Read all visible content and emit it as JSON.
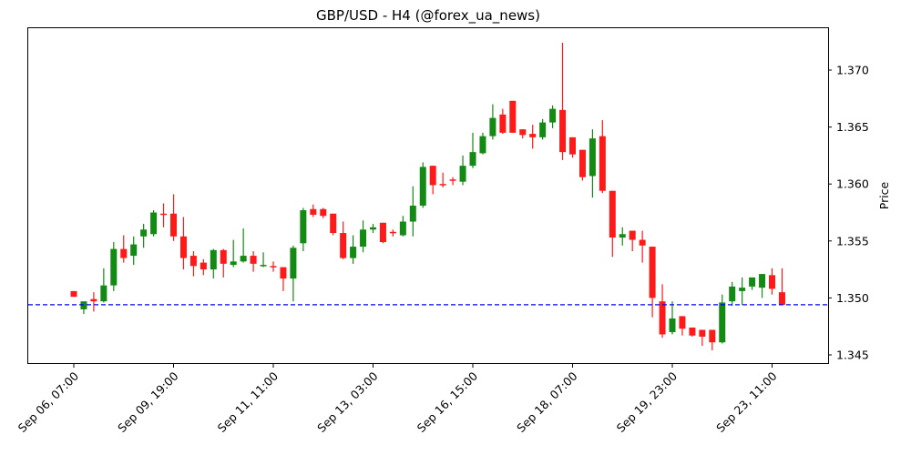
{
  "chart_data": {
    "type": "candlestick",
    "title": "GBP/USD - H4 (@forex_ua_news)",
    "xlabel": "",
    "ylabel": "Price",
    "ylim": [
      1.3441,
      1.3738
    ],
    "yticks": [
      "1.345",
      "1.350",
      "1.355",
      "1.360",
      "1.365",
      "1.370"
    ],
    "xticks": [
      {
        "label": "Sep 06, 07:00",
        "index": 0
      },
      {
        "label": "Sep 09, 19:00",
        "index": 10
      },
      {
        "label": "Sep 11, 11:00",
        "index": 20
      },
      {
        "label": "Sep 13, 03:00",
        "index": 30
      },
      {
        "label": "Sep 16, 15:00",
        "index": 40
      },
      {
        "label": "Sep 18, 07:00",
        "index": 50
      },
      {
        "label": "Sep 19, 23:00",
        "index": 60
      },
      {
        "label": "Sep 23, 11:00",
        "index": 70
      }
    ],
    "reference_line": {
      "value": 1.3494,
      "style": "dashed",
      "color": "#0000ff"
    },
    "up_color": "#138a13",
    "down_color": "#ff1a1a",
    "candles": [
      {
        "o": 1.3506,
        "h": 1.3506,
        "l": 1.3501,
        "c": 1.3501
      },
      {
        "o": 1.349,
        "h": 1.3496,
        "l": 1.3486,
        "c": 1.3497
      },
      {
        "o": 1.3499,
        "h": 1.3505,
        "l": 1.3488,
        "c": 1.3497
      },
      {
        "o": 1.3497,
        "h": 1.3526,
        "l": 1.3496,
        "c": 1.3511
      },
      {
        "o": 1.3511,
        "h": 1.3549,
        "l": 1.3506,
        "c": 1.3543
      },
      {
        "o": 1.3543,
        "h": 1.3555,
        "l": 1.3531,
        "c": 1.3535
      },
      {
        "o": 1.3537,
        "h": 1.3554,
        "l": 1.3529,
        "c": 1.3547
      },
      {
        "o": 1.3554,
        "h": 1.3565,
        "l": 1.3544,
        "c": 1.356
      },
      {
        "o": 1.3556,
        "h": 1.3577,
        "l": 1.3554,
        "c": 1.3575
      },
      {
        "o": 1.3574,
        "h": 1.3583,
        "l": 1.3562,
        "c": 1.3573
      },
      {
        "o": 1.3574,
        "h": 1.3591,
        "l": 1.355,
        "c": 1.3554
      },
      {
        "o": 1.3554,
        "h": 1.3571,
        "l": 1.3525,
        "c": 1.3535
      },
      {
        "o": 1.3537,
        "h": 1.3541,
        "l": 1.3519,
        "c": 1.3528
      },
      {
        "o": 1.3531,
        "h": 1.3534,
        "l": 1.352,
        "c": 1.3525
      },
      {
        "o": 1.3525,
        "h": 1.3543,
        "l": 1.3517,
        "c": 1.3542
      },
      {
        "o": 1.3542,
        "h": 1.3543,
        "l": 1.3518,
        "c": 1.353
      },
      {
        "o": 1.3529,
        "h": 1.3551,
        "l": 1.3527,
        "c": 1.3532
      },
      {
        "o": 1.3532,
        "h": 1.3561,
        "l": 1.3531,
        "c": 1.3537
      },
      {
        "o": 1.3537,
        "h": 1.3541,
        "l": 1.3523,
        "c": 1.353
      },
      {
        "o": 1.3528,
        "h": 1.354,
        "l": 1.3527,
        "c": 1.3529
      },
      {
        "o": 1.3528,
        "h": 1.3532,
        "l": 1.3523,
        "c": 1.3527
      },
      {
        "o": 1.3527,
        "h": 1.3527,
        "l": 1.3506,
        "c": 1.3517
      },
      {
        "o": 1.3517,
        "h": 1.3546,
        "l": 1.3497,
        "c": 1.3544
      },
      {
        "o": 1.3548,
        "h": 1.3579,
        "l": 1.3541,
        "c": 1.3577
      },
      {
        "o": 1.3578,
        "h": 1.3582,
        "l": 1.3571,
        "c": 1.3573
      },
      {
        "o": 1.3578,
        "h": 1.3579,
        "l": 1.357,
        "c": 1.3572
      },
      {
        "o": 1.3574,
        "h": 1.3574,
        "l": 1.3555,
        "c": 1.3557
      },
      {
        "o": 1.3557,
        "h": 1.3567,
        "l": 1.3534,
        "c": 1.3535
      },
      {
        "o": 1.3535,
        "h": 1.3555,
        "l": 1.353,
        "c": 1.3545
      },
      {
        "o": 1.3545,
        "h": 1.3568,
        "l": 1.354,
        "c": 1.356
      },
      {
        "o": 1.356,
        "h": 1.3565,
        "l": 1.3557,
        "c": 1.3562
      },
      {
        "o": 1.3566,
        "h": 1.3566,
        "l": 1.3548,
        "c": 1.3549
      },
      {
        "o": 1.3558,
        "h": 1.356,
        "l": 1.3554,
        "c": 1.3557
      },
      {
        "o": 1.3555,
        "h": 1.3572,
        "l": 1.3554,
        "c": 1.3567
      },
      {
        "o": 1.3567,
        "h": 1.3598,
        "l": 1.3554,
        "c": 1.3581
      },
      {
        "o": 1.3581,
        "h": 1.3619,
        "l": 1.3579,
        "c": 1.3615
      },
      {
        "o": 1.3616,
        "h": 1.3616,
        "l": 1.3591,
        "c": 1.3599
      },
      {
        "o": 1.36,
        "h": 1.361,
        "l": 1.3597,
        "c": 1.3599
      },
      {
        "o": 1.3604,
        "h": 1.3606,
        "l": 1.3599,
        "c": 1.3603
      },
      {
        "o": 1.3602,
        "h": 1.3625,
        "l": 1.3599,
        "c": 1.3616
      },
      {
        "o": 1.3616,
        "h": 1.3645,
        "l": 1.3614,
        "c": 1.3628
      },
      {
        "o": 1.3627,
        "h": 1.3645,
        "l": 1.3626,
        "c": 1.3642
      },
      {
        "o": 1.3642,
        "h": 1.367,
        "l": 1.3639,
        "c": 1.3658
      },
      {
        "o": 1.3661,
        "h": 1.3666,
        "l": 1.3644,
        "c": 1.3645
      },
      {
        "o": 1.3673,
        "h": 1.3673,
        "l": 1.3645,
        "c": 1.3645
      },
      {
        "o": 1.3648,
        "h": 1.3648,
        "l": 1.364,
        "c": 1.3643
      },
      {
        "o": 1.3644,
        "h": 1.3652,
        "l": 1.3631,
        "c": 1.3641
      },
      {
        "o": 1.3641,
        "h": 1.3657,
        "l": 1.3639,
        "c": 1.3654
      },
      {
        "o": 1.3654,
        "h": 1.3669,
        "l": 1.3649,
        "c": 1.3666
      },
      {
        "o": 1.3665,
        "h": 1.3724,
        "l": 1.3621,
        "c": 1.3628
      },
      {
        "o": 1.3641,
        "h": 1.3641,
        "l": 1.3623,
        "c": 1.3626
      },
      {
        "o": 1.363,
        "h": 1.363,
        "l": 1.3603,
        "c": 1.3606
      },
      {
        "o": 1.3607,
        "h": 1.3648,
        "l": 1.3588,
        "c": 1.364
      },
      {
        "o": 1.3642,
        "h": 1.3656,
        "l": 1.3592,
        "c": 1.3594
      },
      {
        "o": 1.3594,
        "h": 1.3594,
        "l": 1.3536,
        "c": 1.3553
      },
      {
        "o": 1.3553,
        "h": 1.3562,
        "l": 1.3546,
        "c": 1.3556
      },
      {
        "o": 1.3559,
        "h": 1.3559,
        "l": 1.3541,
        "c": 1.3551
      },
      {
        "o": 1.3551,
        "h": 1.3559,
        "l": 1.3531,
        "c": 1.3546
      },
      {
        "o": 1.3545,
        "h": 1.3545,
        "l": 1.3483,
        "c": 1.35
      },
      {
        "o": 1.3497,
        "h": 1.3512,
        "l": 1.3465,
        "c": 1.3468
      },
      {
        "o": 1.347,
        "h": 1.3497,
        "l": 1.3468,
        "c": 1.3482
      },
      {
        "o": 1.3484,
        "h": 1.3484,
        "l": 1.3467,
        "c": 1.3473
      },
      {
        "o": 1.3474,
        "h": 1.3474,
        "l": 1.3466,
        "c": 1.3467
      },
      {
        "o": 1.3472,
        "h": 1.3472,
        "l": 1.3458,
        "c": 1.3466
      },
      {
        "o": 1.3472,
        "h": 1.3472,
        "l": 1.3454,
        "c": 1.3461
      },
      {
        "o": 1.3461,
        "h": 1.3503,
        "l": 1.346,
        "c": 1.3496
      },
      {
        "o": 1.3497,
        "h": 1.3514,
        "l": 1.3493,
        "c": 1.351
      },
      {
        "o": 1.3506,
        "h": 1.3518,
        "l": 1.3494,
        "c": 1.3509
      },
      {
        "o": 1.351,
        "h": 1.3518,
        "l": 1.3507,
        "c": 1.3518
      },
      {
        "o": 1.3509,
        "h": 1.3521,
        "l": 1.35,
        "c": 1.3521
      },
      {
        "o": 1.352,
        "h": 1.3526,
        "l": 1.3503,
        "c": 1.3508
      },
      {
        "o": 1.3505,
        "h": 1.3526,
        "l": 1.3494,
        "c": 1.3494
      }
    ]
  }
}
